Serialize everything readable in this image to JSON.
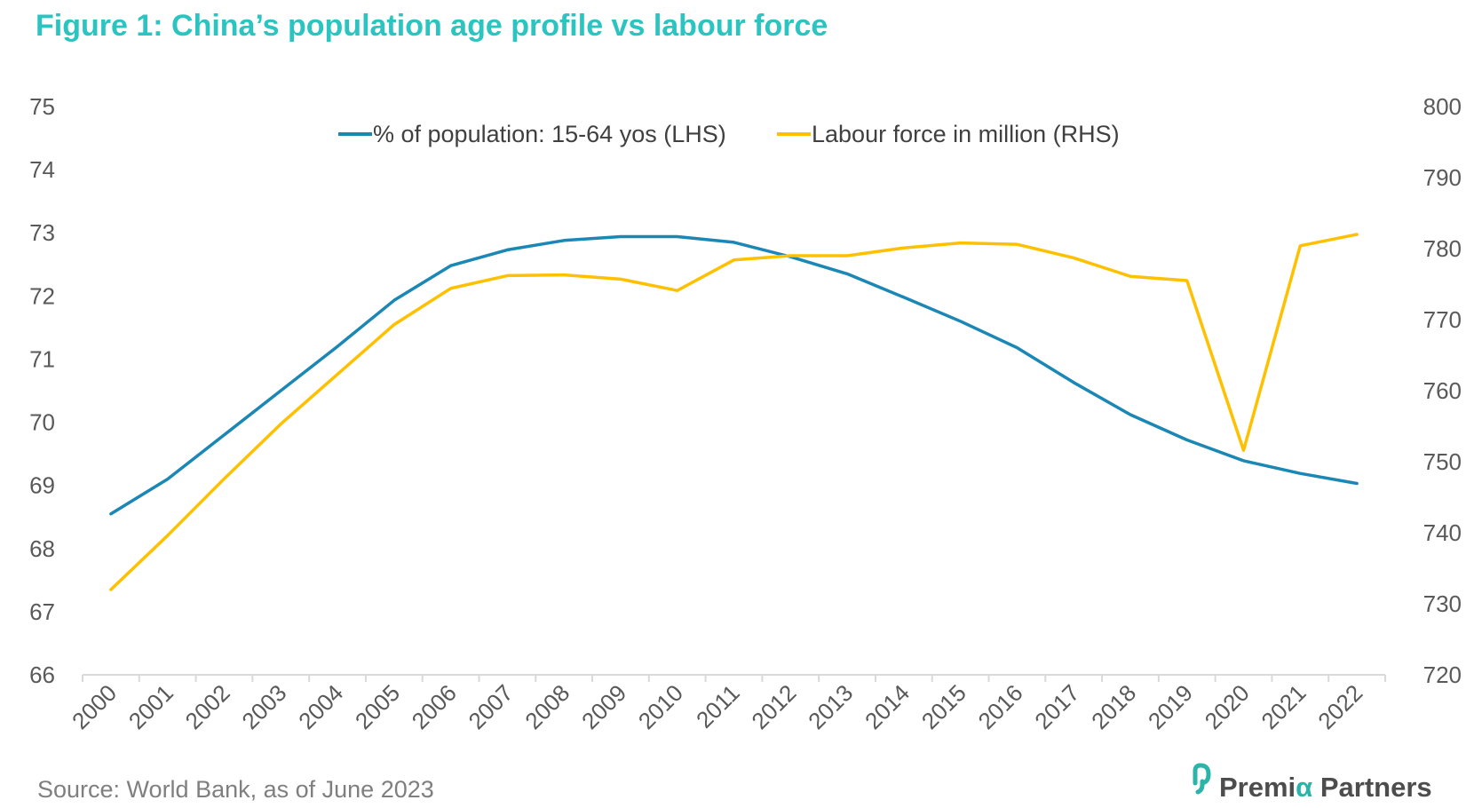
{
  "colors": {
    "title": "#2bc4c0",
    "series_lhs": "#1b87b5",
    "series_rhs": "#ffc000",
    "axis": "#d9d9d9",
    "tick_text": "#595959",
    "logo_accent": "#2bb5a8"
  },
  "footer": {
    "source": "Source: World Bank, as of June 2023"
  },
  "logo": {
    "text_before": "Premi",
    "text_accent": "α",
    "text_after": " Partners"
  },
  "chart_data": {
    "type": "line",
    "title": "Figure 1: China’s population age profile vs labour force",
    "categories": [
      "2000",
      "2001",
      "2002",
      "2003",
      "2004",
      "2005",
      "2006",
      "2007",
      "2008",
      "2009",
      "2010",
      "2011",
      "2012",
      "2013",
      "2014",
      "2015",
      "2016",
      "2017",
      "2018",
      "2019",
      "2020",
      "2021",
      "2022"
    ],
    "y_left": {
      "min": 66,
      "max": 75,
      "ticks": [
        66,
        67,
        68,
        69,
        70,
        71,
        72,
        73,
        74,
        75
      ]
    },
    "y_right": {
      "min": 720,
      "max": 800,
      "ticks": [
        720,
        730,
        740,
        750,
        760,
        770,
        780,
        790,
        800
      ]
    },
    "grid": false,
    "legend_position": "top",
    "series": [
      {
        "name": "% of population: 15-64 yos (LHS)",
        "axis": "left",
        "values": [
          68.55,
          69.1,
          69.8,
          70.5,
          71.2,
          71.93,
          72.48,
          72.73,
          72.88,
          72.94,
          72.94,
          72.85,
          72.62,
          72.35,
          71.98,
          71.6,
          71.18,
          70.63,
          70.12,
          69.72,
          69.39,
          69.19,
          69.03
        ]
      },
      {
        "name": "Labour force in million (RHS)",
        "axis": "right",
        "values": [
          732.0,
          739.6,
          747.6,
          755.3,
          762.3,
          769.3,
          774.4,
          776.2,
          776.3,
          775.7,
          774.1,
          778.4,
          779.0,
          779.0,
          780.1,
          780.8,
          780.6,
          778.7,
          776.1,
          775.5,
          751.6,
          780.4,
          782.0
        ]
      }
    ]
  }
}
